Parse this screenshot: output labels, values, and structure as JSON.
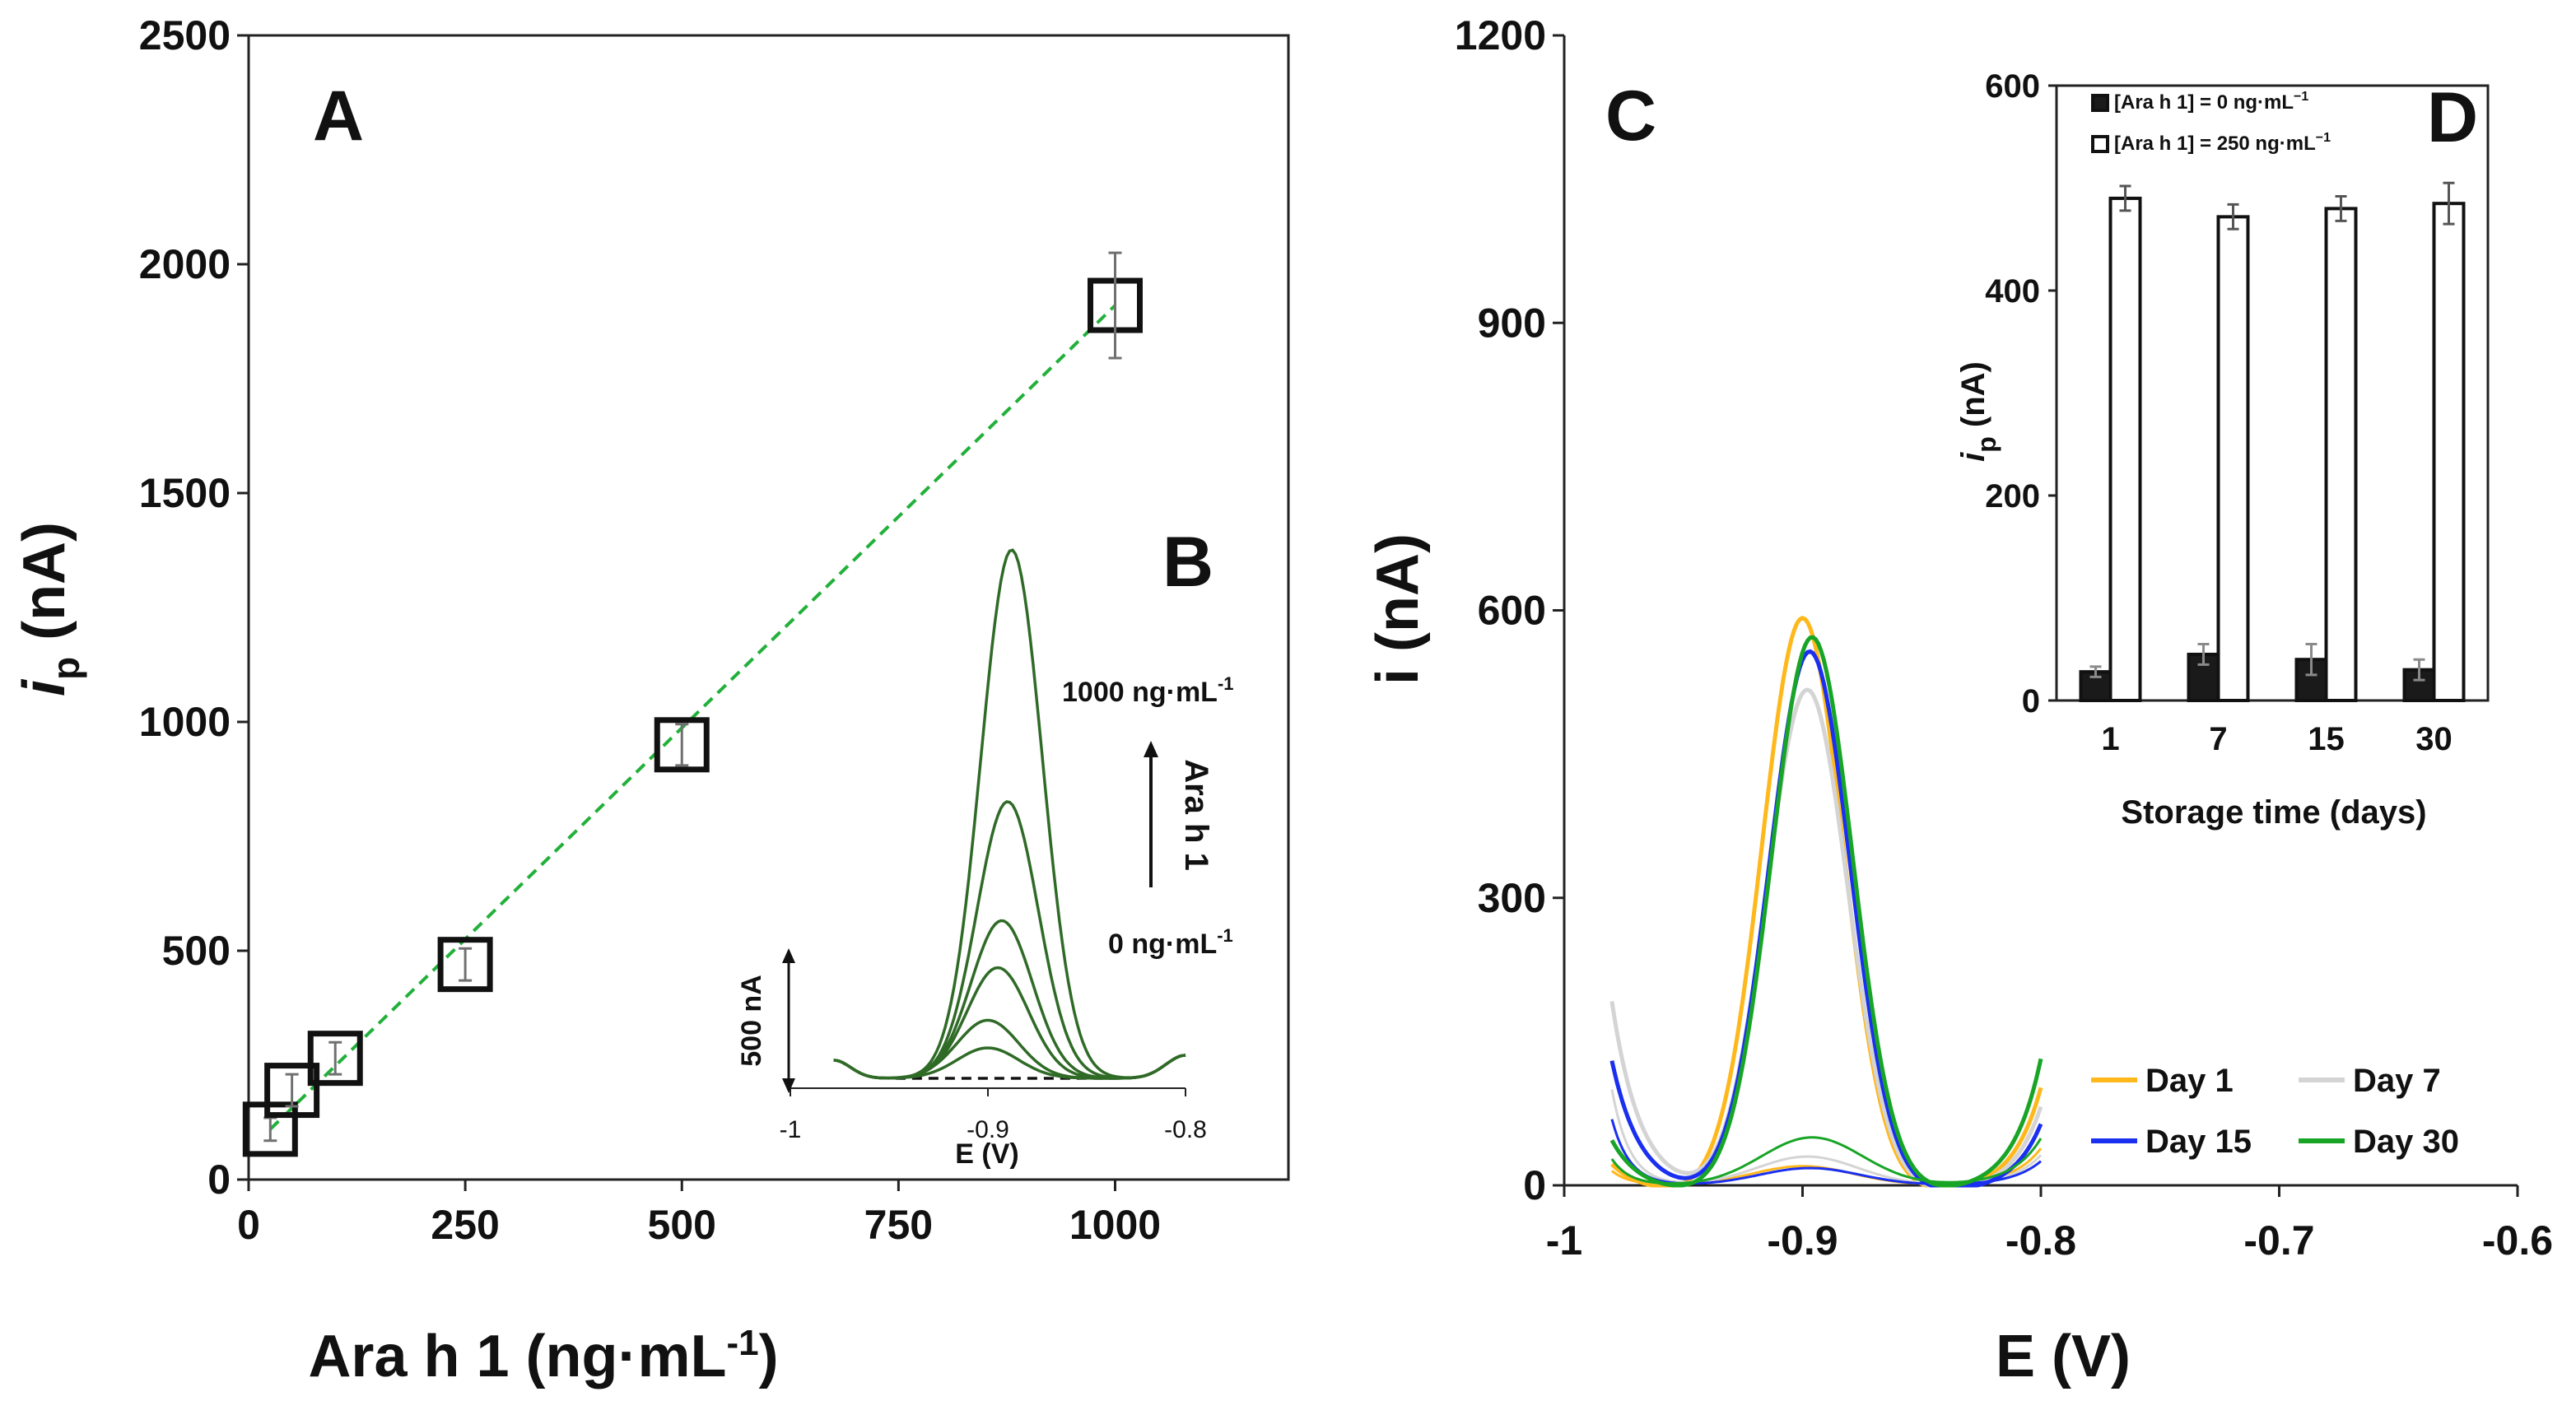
{
  "colors": {
    "axis": "#222222",
    "fit": "#22b03a",
    "curvesB": "#2f6b27",
    "day1": "#ffb81c",
    "day7": "#d4d4d4",
    "day15": "#1a2ff0",
    "day30": "#18a526",
    "errbar": "#707070"
  },
  "chart_data": [
    {
      "id": "A",
      "type": "scatter",
      "panel_label": "A",
      "xlabel": "Ara h 1 (ng·mL",
      "xlabel_sup": "-1",
      "xlabel_close": ")",
      "ylabel": "i",
      "ylabel_sub": "p",
      "ylabel_unit": " (nA)",
      "xlim": [
        0,
        1200
      ],
      "ylim": [
        0,
        2500
      ],
      "xticks": [
        0,
        250,
        500,
        750,
        1000
      ],
      "yticks": [
        0,
        500,
        1000,
        1500,
        2000,
        2500
      ],
      "x": [
        25,
        50,
        100,
        250,
        500,
        1000
      ],
      "y": [
        110,
        195,
        265,
        470,
        950,
        1910
      ],
      "yerr": [
        25,
        35,
        35,
        35,
        45,
        115
      ],
      "fit": {
        "style": "dashed",
        "x": [
          25,
          1000
        ],
        "y": [
          110,
          1910
        ]
      }
    },
    {
      "id": "B",
      "type": "line",
      "panel_label": "B",
      "xlabel": "E (V)",
      "xlim": [
        -1.0,
        -0.8
      ],
      "xticks": [
        "-1",
        "-0.9",
        "-0.8"
      ],
      "scale_bar": "500 nA",
      "arrow_label": "Ara h 1",
      "top_annotation": "1000 ng·mL",
      "top_annotation_sup": "-1",
      "bottom_annotation": "0 ng·mL",
      "bottom_annotation_sup": "-1",
      "series_peak_nA": [
        0,
        110,
        210,
        400,
        570,
        1000,
        1910
      ],
      "series_peak_E": [
        -0.9,
        -0.9,
        -0.9,
        -0.895,
        -0.893,
        -0.89,
        -0.888
      ]
    },
    {
      "id": "C",
      "type": "line",
      "panel_label": "C",
      "xlabel": "E (V)",
      "ylabel": "i (nA)",
      "xlim": [
        -1.0,
        -0.6
      ],
      "ylim": [
        0,
        1200
      ],
      "xticks": [
        "-1",
        "-0.9",
        "-0.8",
        "-0.7",
        "-0.6"
      ],
      "yticks": [
        0,
        300,
        600,
        900,
        1200
      ],
      "series": [
        {
          "name": "Day 1",
          "color_key": "day1",
          "peak": 600,
          "peak_E": -0.9,
          "blank_peak": 20
        },
        {
          "name": "Day 7",
          "color_key": "day7",
          "peak": 525,
          "peak_E": -0.898,
          "blank_peak": 30
        },
        {
          "name": "Day 15",
          "color_key": "day15",
          "peak": 565,
          "peak_E": -0.897,
          "blank_peak": 18
        },
        {
          "name": "Day 30",
          "color_key": "day30",
          "peak": 580,
          "peak_E": -0.896,
          "blank_peak": 50
        }
      ]
    },
    {
      "id": "D",
      "type": "bar",
      "panel_label": "D",
      "xlabel": "Storage time (days)",
      "ylabel": "i",
      "ylabel_sub": "p",
      "ylabel_unit": " (nA)",
      "categories": [
        "1",
        "7",
        "15",
        "30"
      ],
      "ylim": [
        0,
        600
      ],
      "yticks": [
        0,
        200,
        400,
        600
      ],
      "series": [
        {
          "name": "[Ara h 1] = 0 ng·mL",
          "name_sup": "−1",
          "fill": "dark",
          "values": [
            28,
            45,
            40,
            30
          ],
          "err": [
            5,
            10,
            15,
            10
          ]
        },
        {
          "name": "[Ara h 1] = 250 ng·mL",
          "name_sup": "−1",
          "fill": "white",
          "values": [
            490,
            472,
            480,
            485
          ],
          "err": [
            12,
            12,
            12,
            20
          ]
        }
      ]
    }
  ]
}
